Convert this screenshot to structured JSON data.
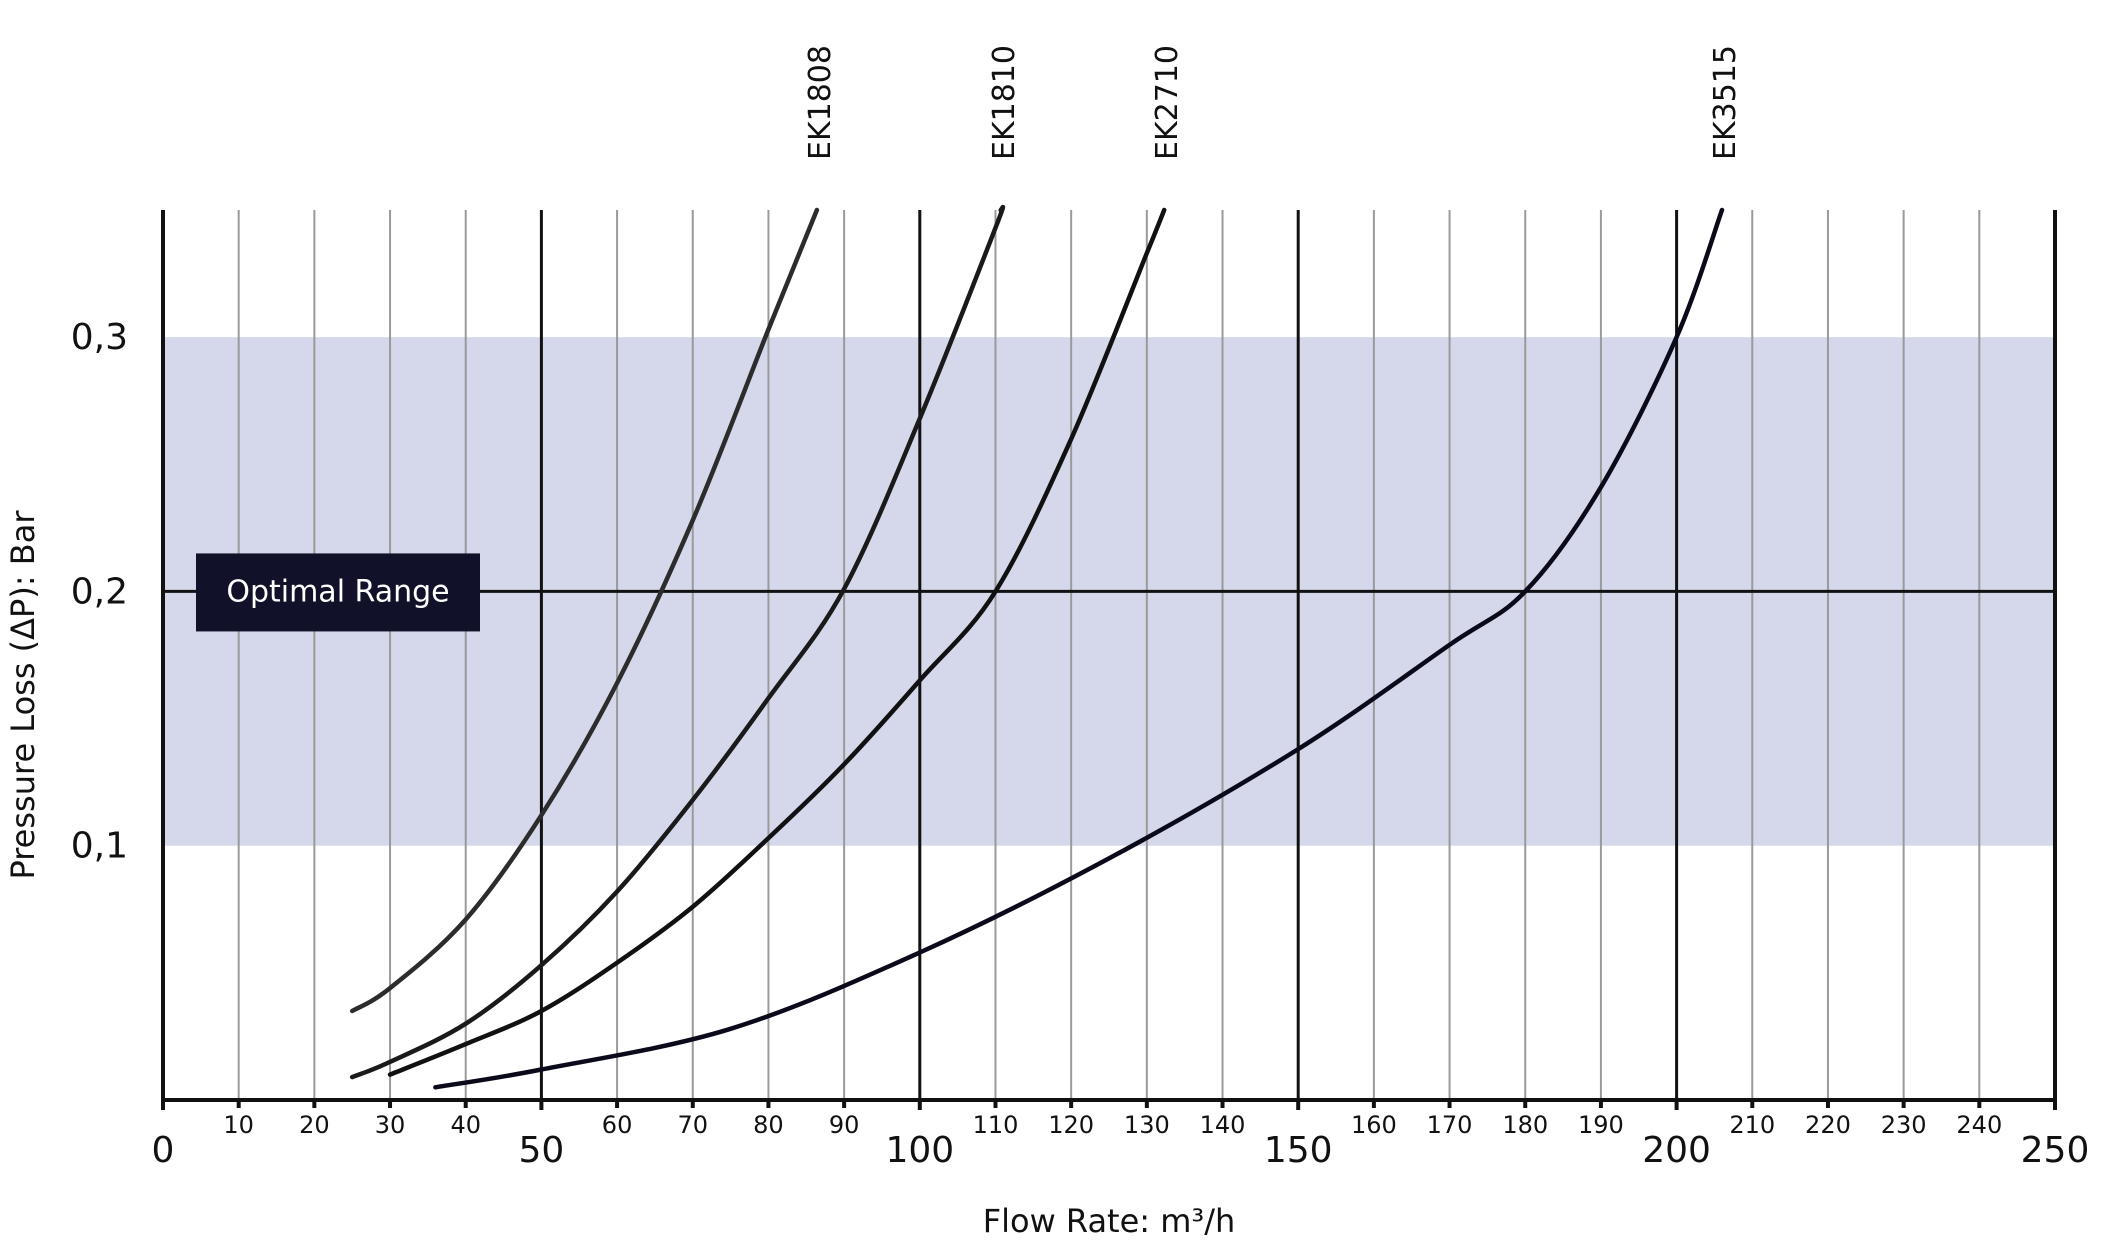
{
  "chart_data": {
    "type": "line",
    "title": "",
    "xlabel": "Flow Rate: m³/h",
    "ylabel": "Pressure Loss (ΔP): Bar",
    "xlim": [
      0,
      250
    ],
    "ylim": [
      0,
      0.35
    ],
    "x_major_ticks": [
      0,
      50,
      100,
      150,
      200,
      250
    ],
    "x_major_tick_labels": [
      "0",
      "50",
      "100",
      "150",
      "200",
      "250"
    ],
    "x_minor_ticks": [
      10,
      20,
      30,
      40,
      60,
      70,
      80,
      90,
      110,
      120,
      130,
      140,
      160,
      170,
      180,
      190,
      210,
      220,
      230,
      240
    ],
    "x_minor_tick_labels": [
      "10",
      "20",
      "30",
      "40",
      "60",
      "70",
      "80",
      "90",
      "110",
      "120",
      "130",
      "140",
      "160",
      "170",
      "180",
      "190",
      "210",
      "220",
      "230",
      "240"
    ],
    "y_ticks": [
      0.1,
      0.2,
      0.3
    ],
    "y_tick_labels": [
      "0,1",
      "0,2",
      "0,3"
    ],
    "grid": true,
    "optimal_range": {
      "label": "Optimal Range",
      "y_min": 0.1,
      "y_max": 0.3,
      "reference_y": 0.2,
      "color": "#d5d8ea"
    },
    "series": [
      {
        "name": "EK1808",
        "color": "#2c2c2c",
        "x": [
          25,
          30,
          40,
          50,
          60,
          70,
          80,
          86.4
        ],
        "y": [
          0.035,
          0.044,
          0.071,
          0.112,
          0.164,
          0.228,
          0.303,
          0.35
        ]
      },
      {
        "name": "EK1810",
        "color": "#1a1a1a",
        "x": [
          25,
          30,
          40,
          50,
          60,
          70,
          80,
          90,
          100,
          110,
          110.7
        ],
        "y": [
          0.009,
          0.015,
          0.03,
          0.053,
          0.082,
          0.118,
          0.158,
          0.201,
          0.268,
          0.343,
          0.35
        ]
      },
      {
        "name": "EK2710",
        "color": "#111111",
        "x": [
          30,
          40,
          50,
          60,
          70,
          80,
          90,
          100,
          110,
          120,
          130,
          132.3
        ],
        "y": [
          0.01,
          0.022,
          0.035,
          0.054,
          0.076,
          0.103,
          0.132,
          0.165,
          0.2,
          0.26,
          0.333,
          0.35
        ]
      },
      {
        "name": "EK3515",
        "color": "#0a0a1a",
        "x": [
          36,
          50,
          75,
          100,
          125,
          150,
          170,
          180,
          190,
          200,
          206
        ],
        "y": [
          0.005,
          0.012,
          0.028,
          0.058,
          0.095,
          0.138,
          0.179,
          0.2,
          0.241,
          0.3,
          0.35
        ]
      }
    ]
  }
}
